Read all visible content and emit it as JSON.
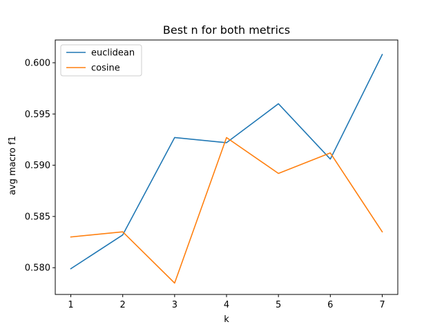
{
  "chart_data": {
    "type": "line",
    "title": "Best n for both metrics",
    "xlabel": "k",
    "ylabel": "avg macro f1",
    "x": [
      1,
      2,
      3,
      4,
      5,
      6,
      7
    ],
    "series": [
      {
        "name": "euclidean",
        "color": "#1f77b4",
        "values": [
          0.5799,
          0.5832,
          0.5927,
          0.5922,
          0.596,
          0.5906,
          0.6008
        ]
      },
      {
        "name": "cosine",
        "color": "#ff7f0e",
        "values": [
          0.583,
          0.5835,
          0.5785,
          0.5927,
          0.5892,
          0.5912,
          0.5835
        ]
      }
    ],
    "xticks": [
      1,
      2,
      3,
      4,
      5,
      6,
      7
    ],
    "yticks": [
      "0.580",
      "0.585",
      "0.590",
      "0.595",
      "0.600"
    ],
    "xlim": [
      0.7,
      7.3
    ],
    "ylim": [
      0.57739,
      0.60222
    ],
    "grid": false,
    "legend_position": "upper left"
  }
}
